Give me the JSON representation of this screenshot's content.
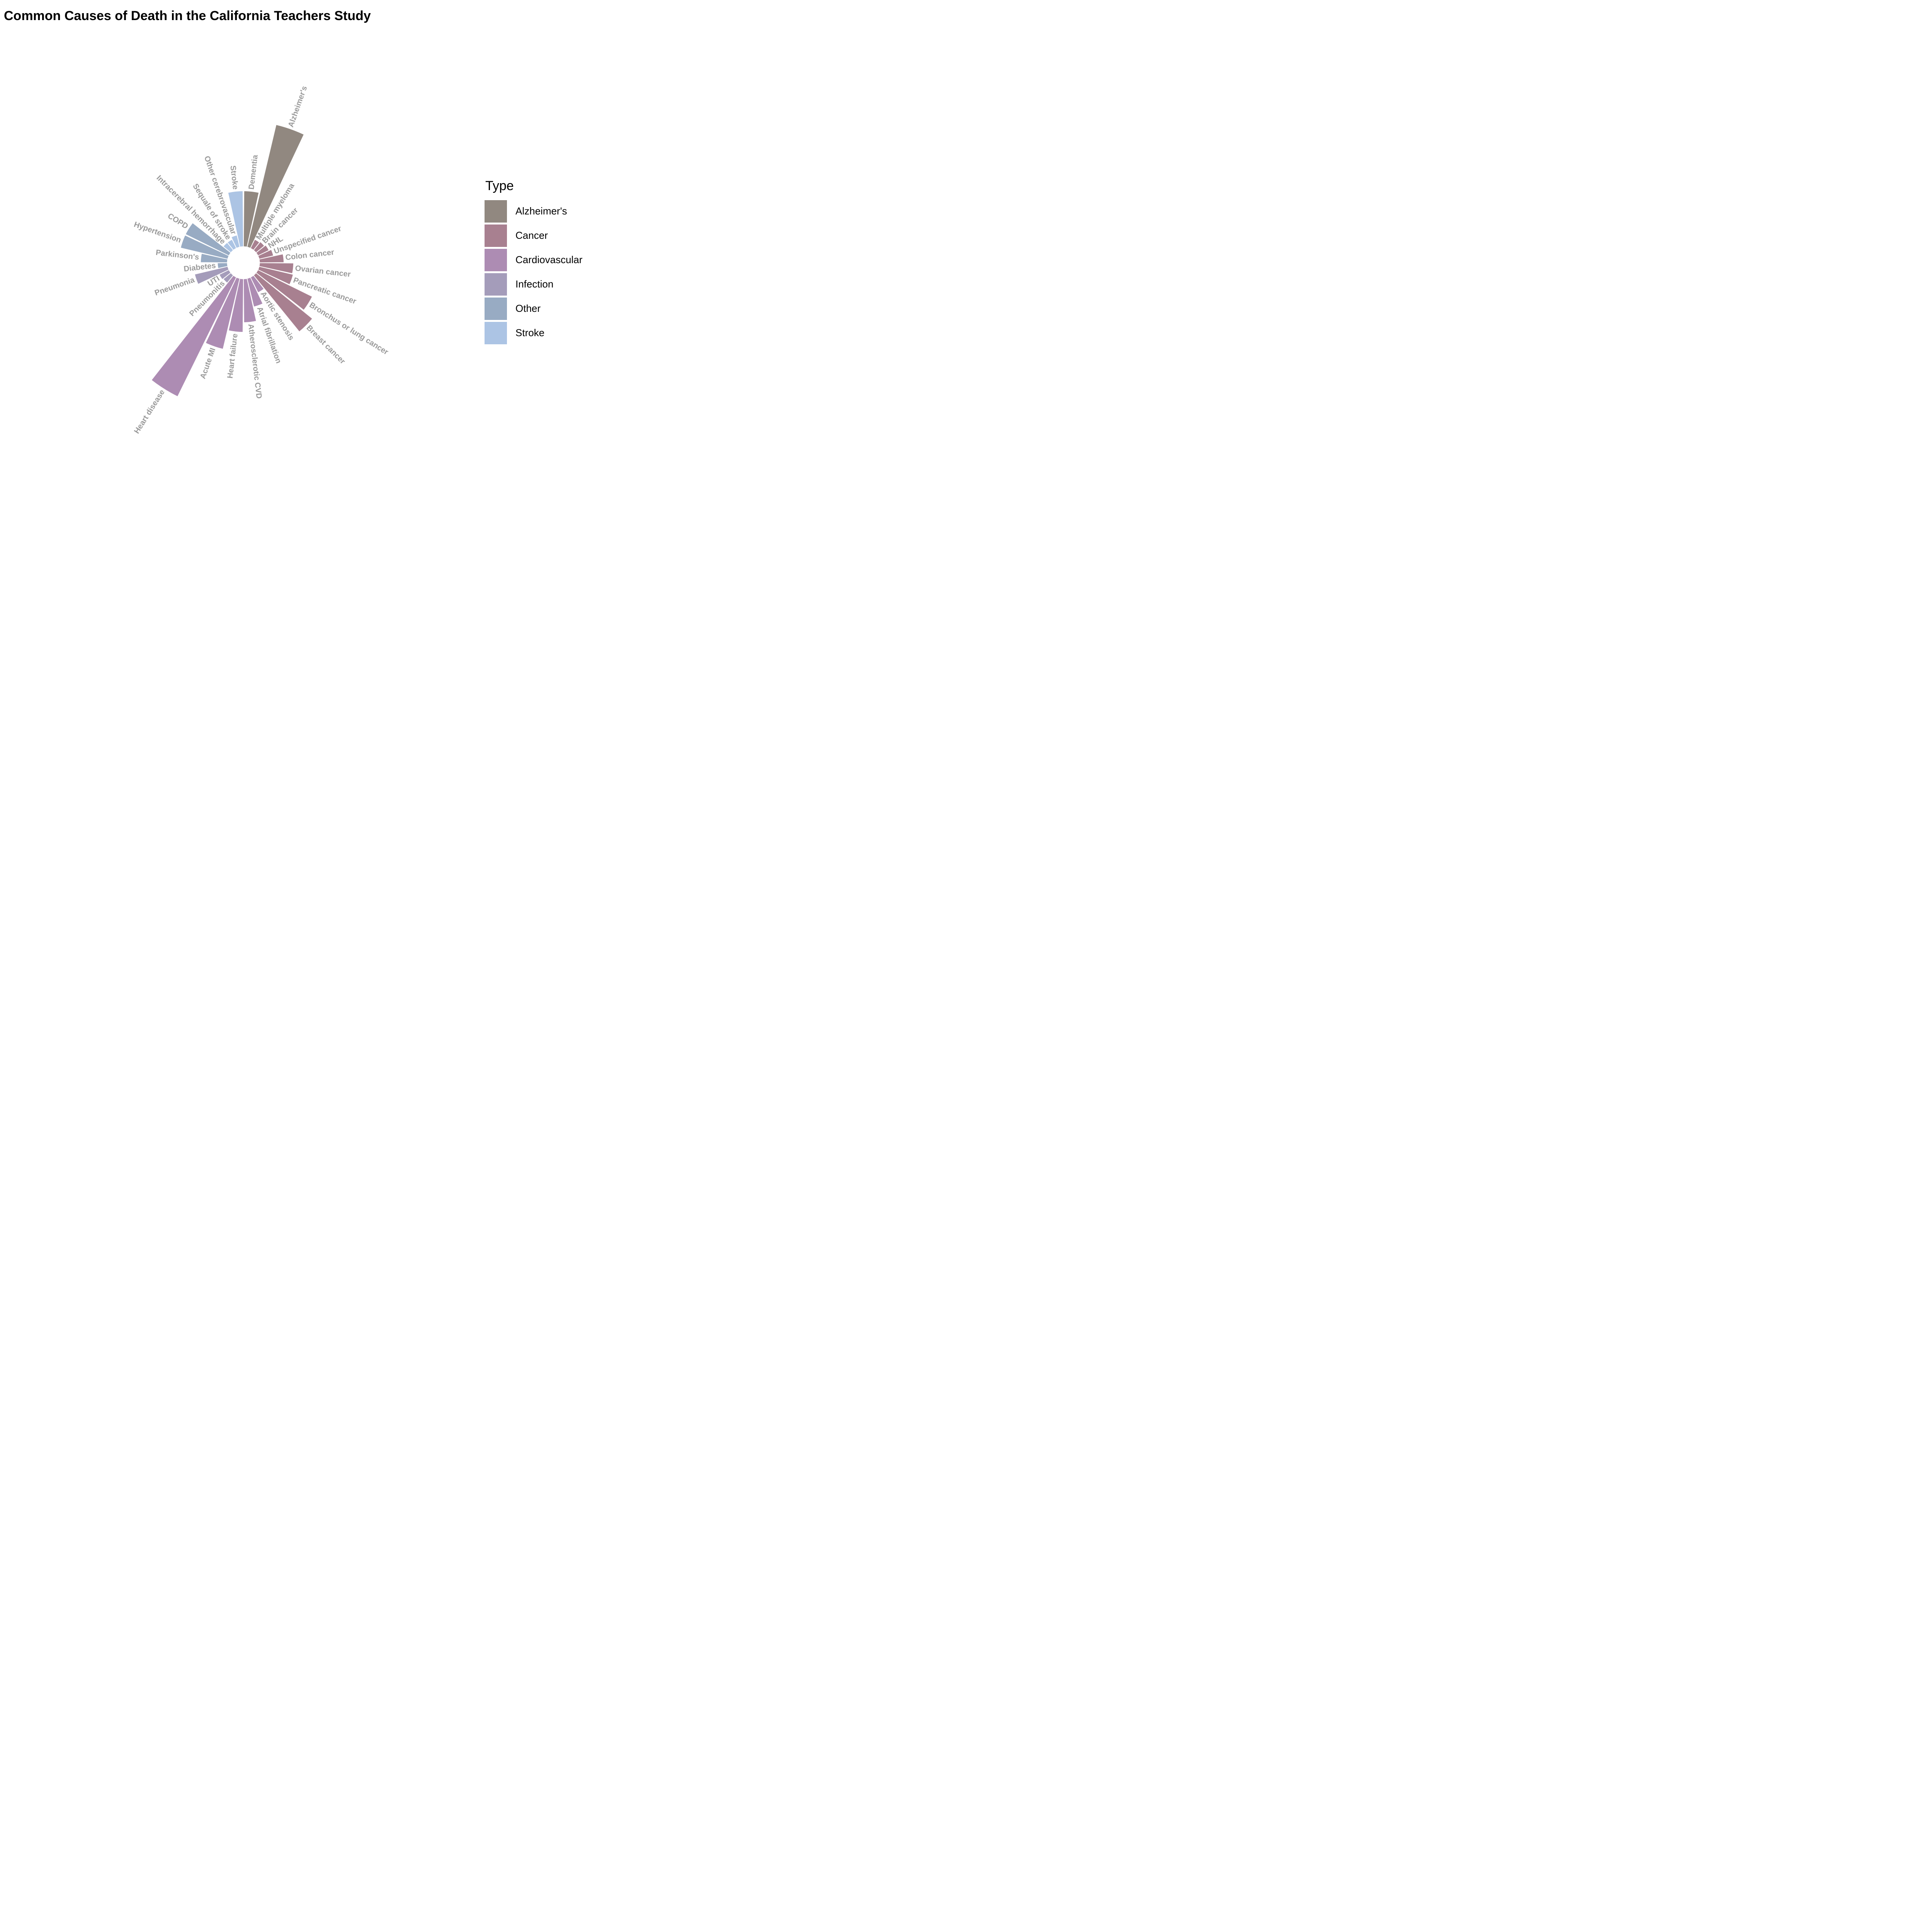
{
  "chart_data": {
    "type": "bar",
    "polar": true,
    "title": "Common Causes of Death in the California Teachers Study",
    "legend": {
      "title": "Type",
      "position": "right",
      "entries": [
        {
          "name": "Alzheimer's",
          "color": "#918880"
        },
        {
          "name": "Cancer",
          "color": "#a88090"
        },
        {
          "name": "Cardiovascular",
          "color": "#ad8cb3"
        },
        {
          "name": "Infection",
          "color": "#a49cba"
        },
        {
          "name": "Other",
          "color": "#98abc3"
        },
        {
          "name": "Stroke",
          "color": "#acc4e4"
        }
      ]
    },
    "categories": [
      "Dementia",
      "Alzheimer's",
      "Multiple myeloma",
      "Brain cancer",
      "NHL",
      "Unspecified cancer",
      "Colon cancer",
      "Ovarian cancer",
      "Pancreatic cancer",
      "Bronchus or lung cancer",
      "Breast cancer",
      "Aortic stenosis",
      "Atrial fibrillation",
      "Atherosclerotic CVD",
      "Heart failure",
      "Acute MI",
      "Heart disease",
      "Pneumonitis",
      "UTI",
      "Pneumonia",
      "Diabetes",
      "Parkinson's",
      "Hypertension",
      "COPD",
      "Intracerebral hemorrhage",
      "Sequale of stroke",
      "Other cerebrovascular",
      "Stroke"
    ],
    "types": [
      "Alzheimer's",
      "Alzheimer's",
      "Cancer",
      "Cancer",
      "Cancer",
      "Cancer",
      "Cancer",
      "Cancer",
      "Cancer",
      "Cancer",
      "Cancer",
      "Cardiovascular",
      "Cardiovascular",
      "Cardiovascular",
      "Cardiovascular",
      "Cardiovascular",
      "Cardiovascular",
      "Infection",
      "Infection",
      "Infection",
      "Other",
      "Other",
      "Other",
      "Other",
      "Stroke",
      "Stroke",
      "Stroke",
      "Stroke"
    ],
    "values": [
      115,
      260,
      20,
      22,
      25,
      30,
      50,
      70,
      72,
      125,
      150,
      35,
      60,
      90,
      110,
      150,
      275,
      20,
      22,
      70,
      20,
      55,
      100,
      100,
      20,
      20,
      25,
      115
    ],
    "grid": false
  }
}
